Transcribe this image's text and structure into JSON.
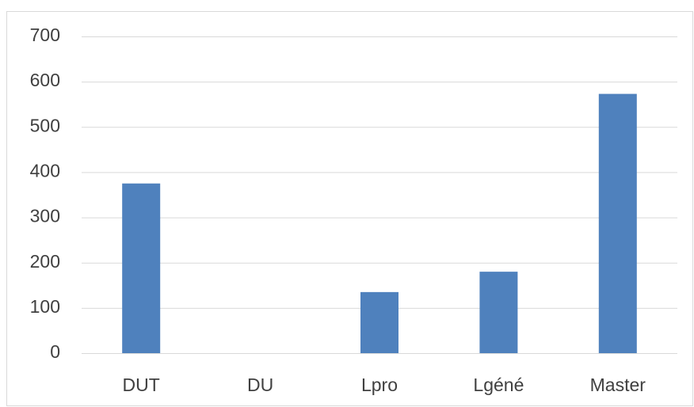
{
  "chart_data": {
    "type": "bar",
    "categories": [
      "DUT",
      "DU",
      "Lpro",
      "Lgéné",
      "Master"
    ],
    "values": [
      375,
      0,
      135,
      180,
      573
    ],
    "color": "#4f81bd",
    "ylim": [
      0,
      700
    ],
    "yticks": [
      0,
      100,
      200,
      300,
      400,
      500,
      600,
      700
    ],
    "grid": true
  }
}
